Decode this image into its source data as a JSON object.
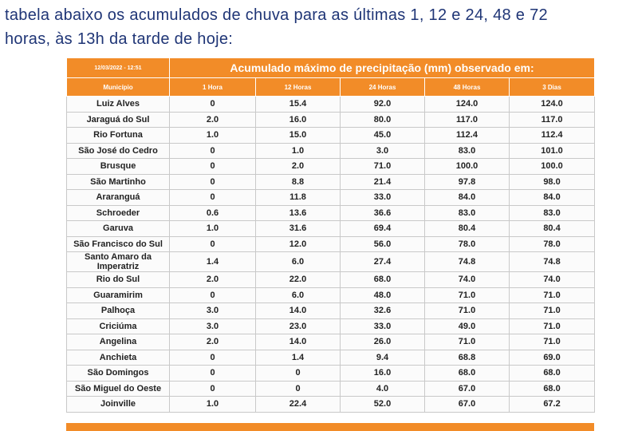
{
  "intro": [
    "tabela abaixo os acumulados de chuva para as últimas 1, 12 e 24, 48 e 72",
    "horas, às 13h da tarde de hoje:"
  ],
  "table": {
    "timestamp": "12/03/2022 - 12:51",
    "title": "Acumulado máximo de precipitação (mm) observado em:",
    "columns": [
      "Município",
      "1 Hora",
      "12 Horas",
      "24 Horas",
      "48 Horas",
      "3 Dias"
    ],
    "rows": [
      [
        "Luiz Alves",
        "0",
        "15.4",
        "92.0",
        "124.0",
        "124.0"
      ],
      [
        "Jaraguá do Sul",
        "2.0",
        "16.0",
        "80.0",
        "117.0",
        "117.0"
      ],
      [
        "Rio Fortuna",
        "1.0",
        "15.0",
        "45.0",
        "112.4",
        "112.4"
      ],
      [
        "São José do Cedro",
        "0",
        "1.0",
        "3.0",
        "83.0",
        "101.0"
      ],
      [
        "Brusque",
        "0",
        "2.0",
        "71.0",
        "100.0",
        "100.0"
      ],
      [
        "São Martinho",
        "0",
        "8.8",
        "21.4",
        "97.8",
        "98.0"
      ],
      [
        "Araranguá",
        "0",
        "11.8",
        "33.0",
        "84.0",
        "84.0"
      ],
      [
        "Schroeder",
        "0.6",
        "13.6",
        "36.6",
        "83.0",
        "83.0"
      ],
      [
        "Garuva",
        "1.0",
        "31.6",
        "69.4",
        "80.4",
        "80.4"
      ],
      [
        "São Francisco do Sul",
        "0",
        "12.0",
        "56.0",
        "78.0",
        "78.0"
      ],
      [
        "Santo Amaro da Imperatriz",
        "1.4",
        "6.0",
        "27.4",
        "74.8",
        "74.8"
      ],
      [
        "Rio do Sul",
        "2.0",
        "22.0",
        "68.0",
        "74.0",
        "74.0"
      ],
      [
        "Guaramirim",
        "0",
        "6.0",
        "48.0",
        "71.0",
        "71.0"
      ],
      [
        "Palhoça",
        "3.0",
        "14.0",
        "32.6",
        "71.0",
        "71.0"
      ],
      [
        "Criciúma",
        "3.0",
        "23.0",
        "33.0",
        "49.0",
        "71.0"
      ],
      [
        "Angelina",
        "2.0",
        "14.0",
        "26.0",
        "71.0",
        "71.0"
      ],
      [
        "Anchieta",
        "0",
        "1.4",
        "9.4",
        "68.8",
        "69.0"
      ],
      [
        "São Domingos",
        "0",
        "0",
        "16.0",
        "68.0",
        "68.0"
      ],
      [
        "São Miguel do Oeste",
        "0",
        "0",
        "4.0",
        "67.0",
        "68.0"
      ],
      [
        "Joinville",
        "1.0",
        "22.4",
        "52.0",
        "67.0",
        "67.2"
      ]
    ]
  }
}
